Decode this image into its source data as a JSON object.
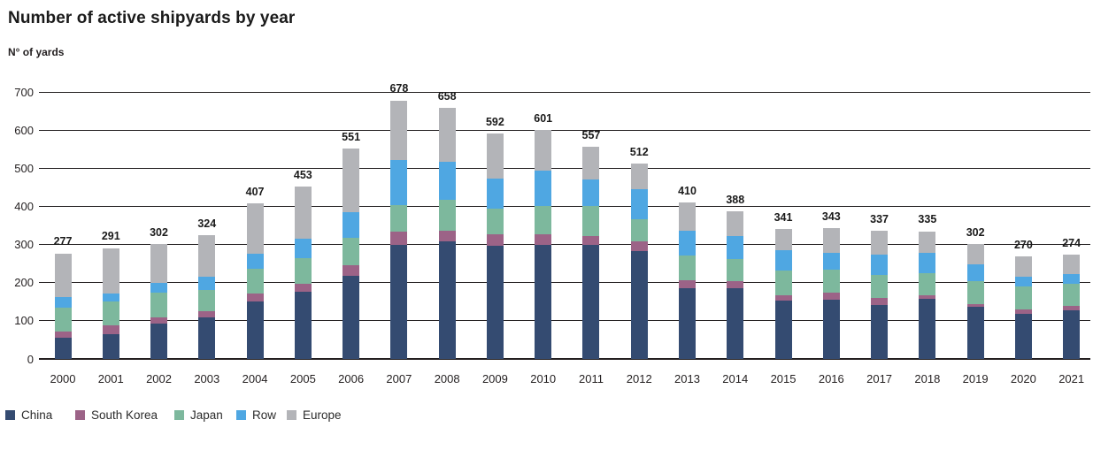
{
  "header": {
    "title": "Number of active shipyards by year",
    "subtitle": "N° of yards"
  },
  "colors": {
    "text": "#231f20",
    "gridline": "#231f20",
    "background": "#ffffff"
  },
  "chart_data": {
    "type": "bar",
    "stacked": true,
    "title": "Number of active shipyards by year",
    "ylabel": "N° of yards",
    "xlabel": "",
    "ylim": [
      0,
      700
    ],
    "yticks": [
      0,
      100,
      200,
      300,
      400,
      500,
      600,
      700
    ],
    "grid": true,
    "legend_position": "bottom",
    "categories": [
      "2000",
      "2001",
      "2002",
      "2003",
      "2004",
      "2005",
      "2006",
      "2007",
      "2008",
      "2009",
      "2010",
      "2011",
      "2012",
      "2013",
      "2014",
      "2015",
      "2016",
      "2017",
      "2018",
      "2019",
      "2020",
      "2021"
    ],
    "totals": [
      277,
      291,
      302,
      324,
      407,
      453,
      551,
      678,
      658,
      592,
      601,
      557,
      512,
      410,
      388,
      341,
      343,
      337,
      335,
      302,
      270,
      274
    ],
    "series": [
      {
        "name": "China",
        "color": "#344b71",
        "values": [
          55,
          66,
          92,
          108,
          150,
          176,
          219,
          300,
          309,
          296,
          298,
          300,
          283,
          185,
          186,
          152,
          156,
          142,
          157,
          136,
          119,
          127
        ]
      },
      {
        "name": "South Korea",
        "color": "#9c6387",
        "values": [
          17,
          21,
          16,
          17,
          21,
          22,
          26,
          33,
          28,
          30,
          29,
          23,
          26,
          21,
          18,
          16,
          18,
          19,
          9,
          8,
          12,
          13
        ]
      },
      {
        "name": "Japan",
        "color": "#7db89d",
        "values": [
          62,
          63,
          65,
          57,
          66,
          66,
          72,
          70,
          80,
          67,
          73,
          77,
          58,
          66,
          58,
          63,
          60,
          60,
          60,
          60,
          59,
          56
        ]
      },
      {
        "name": "Row",
        "color": "#4fa7e2",
        "values": [
          29,
          22,
          27,
          33,
          40,
          51,
          68,
          118,
          100,
          80,
          94,
          71,
          77,
          65,
          60,
          55,
          45,
          52,
          53,
          44,
          26,
          27
        ]
      },
      {
        "name": "Europe",
        "color": "#b3b4b8",
        "values": [
          114,
          119,
          102,
          109,
          130,
          138,
          166,
          157,
          141,
          119,
          107,
          86,
          68,
          73,
          66,
          55,
          64,
          64,
          56,
          54,
          54,
          51
        ]
      }
    ]
  }
}
